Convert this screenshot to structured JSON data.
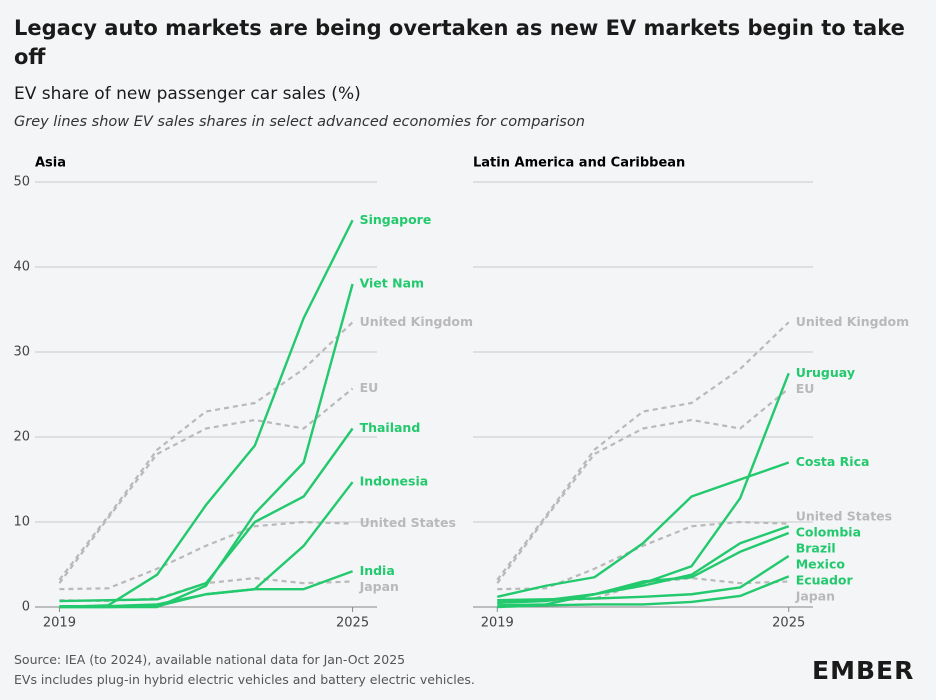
{
  "title": "Legacy auto markets are being overtaken as new EV markets begin to take off",
  "subtitle": "EV share of new passenger car sales (%)",
  "note": "Grey lines show EV sales shares in select advanced economies for comparison",
  "source": "Source: IEA (to 2024), available national data for Jan-Oct 2025",
  "footnote": "EVs includes plug-in hybrid electric vehicles and battery electric vehicles.",
  "logo": "EMBER",
  "chart_data": [
    {
      "type": "line",
      "title": "Asia",
      "x": [
        2019,
        2020,
        2021,
        2022,
        2023,
        2024,
        2025
      ],
      "xlim": [
        2018.5,
        2025.5
      ],
      "xticks": [
        2019,
        2025
      ],
      "ylim": [
        0,
        50
      ],
      "yticks": [
        0,
        10,
        20,
        30,
        40,
        50
      ],
      "grid": true,
      "show_ytick_labels": true,
      "series": [
        {
          "name": "United Kingdom",
          "color": "#b9b9b9",
          "dashed": true,
          "values": [
            3.2,
            10.7,
            18.5,
            23,
            24,
            28,
            33.5
          ]
        },
        {
          "name": "EU",
          "color": "#b9b9b9",
          "dashed": true,
          "values": [
            2.8,
            10.5,
            18,
            21,
            22,
            21,
            25.7
          ]
        },
        {
          "name": "United States",
          "color": "#b9b9b9",
          "dashed": true,
          "values": [
            2.1,
            2.2,
            4.5,
            7.2,
            9.5,
            10,
            9.8
          ]
        },
        {
          "name": "Japan",
          "color": "#b9b9b9",
          "dashed": true,
          "values": [
            0.8,
            0.7,
            1.0,
            2.8,
            3.4,
            2.8,
            3.0
          ]
        },
        {
          "name": "Singapore",
          "color": "#22c96d",
          "dashed": false,
          "values": [
            0,
            0.2,
            3.8,
            12,
            19,
            34,
            45.5
          ]
        },
        {
          "name": "Viet Nam",
          "color": "#22c96d",
          "dashed": false,
          "values": [
            0,
            0,
            0,
            2.5,
            11,
            17,
            38
          ]
        },
        {
          "name": "Thailand",
          "color": "#22c96d",
          "dashed": false,
          "values": [
            0.7,
            0.8,
            0.9,
            2.8,
            10,
            13,
            21
          ]
        },
        {
          "name": "Indonesia",
          "color": "#22c96d",
          "dashed": false,
          "values": [
            0,
            0,
            0.1,
            1.5,
            2.1,
            7.2,
            14.7
          ]
        },
        {
          "name": "India",
          "color": "#22c96d",
          "dashed": false,
          "values": [
            0.1,
            0.1,
            0.3,
            1.5,
            2.1,
            2.1,
            4.2
          ]
        }
      ]
    },
    {
      "type": "line",
      "title": "Latin America and Caribbean",
      "x": [
        2019,
        2020,
        2021,
        2022,
        2023,
        2024,
        2025
      ],
      "xlim": [
        2018.5,
        2025.5
      ],
      "xticks": [
        2019,
        2025
      ],
      "ylim": [
        0,
        50
      ],
      "yticks": [
        0,
        10,
        20,
        30,
        40,
        50
      ],
      "grid": true,
      "show_ytick_labels": false,
      "series": [
        {
          "name": "United Kingdom",
          "color": "#b9b9b9",
          "dashed": true,
          "values": [
            3.2,
            10.7,
            18.5,
            23,
            24,
            28,
            33.5
          ]
        },
        {
          "name": "EU",
          "color": "#b9b9b9",
          "dashed": true,
          "values": [
            2.8,
            10.5,
            18,
            21,
            22,
            21,
            25.7
          ]
        },
        {
          "name": "United States",
          "color": "#b9b9b9",
          "dashed": true,
          "values": [
            2.1,
            2.2,
            4.5,
            7.2,
            9.5,
            10,
            9.8
          ]
        },
        {
          "name": "Japan",
          "color": "#b9b9b9",
          "dashed": true,
          "values": [
            0.8,
            0.7,
            1.0,
            2.8,
            3.4,
            2.8,
            3.0
          ]
        },
        {
          "name": "Uruguay",
          "color": "#22c96d",
          "dashed": false,
          "values": [
            0.5,
            0.8,
            1.5,
            2.8,
            4.8,
            12.8,
            27.5
          ]
        },
        {
          "name": "Costa Rica",
          "color": "#22c96d",
          "dashed": false,
          "values": [
            1.2,
            2.5,
            3.5,
            7.5,
            13,
            15,
            17
          ]
        },
        {
          "name": "Colombia",
          "color": "#22c96d",
          "dashed": false,
          "values": [
            0.5,
            0.7,
            1.5,
            2.5,
            3.8,
            7.5,
            9.5
          ]
        },
        {
          "name": "Brazil",
          "color": "#22c96d",
          "dashed": false,
          "values": [
            0.2,
            0.3,
            1.5,
            3,
            3.5,
            6.5,
            8.7
          ]
        },
        {
          "name": "Mexico",
          "color": "#22c96d",
          "dashed": false,
          "values": [
            0.8,
            0.9,
            1.0,
            1.2,
            1.5,
            2.3,
            6.0
          ]
        },
        {
          "name": "Ecuador",
          "color": "#22c96d",
          "dashed": false,
          "values": [
            0,
            0.2,
            0.3,
            0.3,
            0.6,
            1.3,
            3.6
          ]
        }
      ]
    }
  ]
}
